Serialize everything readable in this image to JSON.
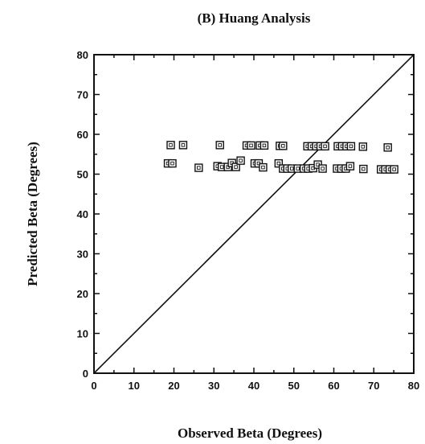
{
  "chart_data": {
    "type": "scatter",
    "title": "(B) Huang Analysis",
    "xlabel": "Observed Beta (Degrees)",
    "ylabel": "Predicted Beta (Degrees)",
    "xlim": [
      0,
      80
    ],
    "ylim": [
      0,
      80
    ],
    "xticks": [
      "0",
      "10",
      "20",
      "30",
      "40",
      "50",
      "60",
      "70",
      "80"
    ],
    "yticks": [
      "0",
      "10",
      "20",
      "30",
      "40",
      "50",
      "60",
      "70",
      "80"
    ],
    "grid": false,
    "marker": "square",
    "reference_line": {
      "type": "identity",
      "from": [
        0,
        0
      ],
      "to": [
        80,
        80
      ]
    },
    "points": [
      {
        "x": 19.2,
        "y": 57.3
      },
      {
        "x": 22.3,
        "y": 57.3
      },
      {
        "x": 31.5,
        "y": 57.3
      },
      {
        "x": 38.2,
        "y": 57.2
      },
      {
        "x": 39.3,
        "y": 57.2
      },
      {
        "x": 41.5,
        "y": 57.2
      },
      {
        "x": 42.6,
        "y": 57.2
      },
      {
        "x": 46.5,
        "y": 57.1
      },
      {
        "x": 47.3,
        "y": 57.1
      },
      {
        "x": 53.4,
        "y": 57.0
      },
      {
        "x": 54.5,
        "y": 57.0
      },
      {
        "x": 55.6,
        "y": 57.0
      },
      {
        "x": 56.7,
        "y": 57.0
      },
      {
        "x": 57.8,
        "y": 57.0
      },
      {
        "x": 61.0,
        "y": 57.0
      },
      {
        "x": 62.1,
        "y": 57.0
      },
      {
        "x": 63.2,
        "y": 57.0
      },
      {
        "x": 64.3,
        "y": 57.0
      },
      {
        "x": 67.3,
        "y": 56.9
      },
      {
        "x": 73.5,
        "y": 56.7
      },
      {
        "x": 18.5,
        "y": 52.7
      },
      {
        "x": 19.6,
        "y": 52.7
      },
      {
        "x": 26.2,
        "y": 51.6
      },
      {
        "x": 30.9,
        "y": 52.0
      },
      {
        "x": 32.0,
        "y": 51.8
      },
      {
        "x": 33.5,
        "y": 51.8
      },
      {
        "x": 34.5,
        "y": 52.8
      },
      {
        "x": 35.5,
        "y": 51.8
      },
      {
        "x": 36.7,
        "y": 53.4
      },
      {
        "x": 40.2,
        "y": 52.7
      },
      {
        "x": 41.2,
        "y": 52.7
      },
      {
        "x": 42.3,
        "y": 51.7
      },
      {
        "x": 46.2,
        "y": 52.7
      },
      {
        "x": 47.3,
        "y": 51.4
      },
      {
        "x": 48.4,
        "y": 51.4
      },
      {
        "x": 49.5,
        "y": 51.4
      },
      {
        "x": 51.0,
        "y": 51.4
      },
      {
        "x": 52.5,
        "y": 51.4
      },
      {
        "x": 53.6,
        "y": 51.4
      },
      {
        "x": 54.8,
        "y": 51.5
      },
      {
        "x": 56.0,
        "y": 52.4
      },
      {
        "x": 57.2,
        "y": 51.4
      },
      {
        "x": 60.8,
        "y": 51.4
      },
      {
        "x": 61.9,
        "y": 51.4
      },
      {
        "x": 63.0,
        "y": 51.4
      },
      {
        "x": 64.1,
        "y": 52.0
      },
      {
        "x": 67.4,
        "y": 51.3
      },
      {
        "x": 71.8,
        "y": 51.2
      },
      {
        "x": 72.9,
        "y": 51.2
      },
      {
        "x": 74.0,
        "y": 51.2
      },
      {
        "x": 75.1,
        "y": 51.2
      }
    ]
  }
}
